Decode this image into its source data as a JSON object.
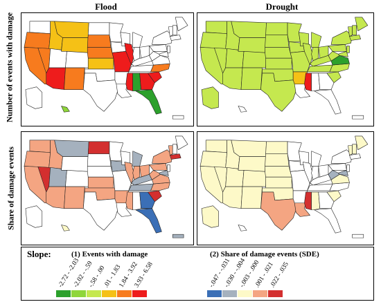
{
  "columns": {
    "left": "Flood",
    "right": "Drought"
  },
  "rows": {
    "top": "Number of events with damage",
    "bottom": "Share of damage events"
  },
  "legend": {
    "title": "Slope:",
    "events": {
      "title": "(1) Events with damage",
      "bins": [
        {
          "label": "-2.72 - -2.03",
          "color": "#2ca02c"
        },
        {
          "label": "-2.02 - -.59",
          "color": "#8fd63a"
        },
        {
          "label": "-.58 - .00",
          "color": "#c5e84f"
        },
        {
          "label": ".01 - 1.83",
          "color": "#f5c116"
        },
        {
          "label": "1.84 - 3.92",
          "color": "#f77b1e"
        },
        {
          "label": "3.93 - 6.58",
          "color": "#ee1c1c"
        }
      ]
    },
    "share": {
      "title": "(2) Share of damage events (SDE)",
      "bins": [
        {
          "label": "-.047 - -.031",
          "color": "#3b6fb6"
        },
        {
          "label": "-.030 - -.004",
          "color": "#a5b1be"
        },
        {
          "label": "-.003 - .000",
          "color": "#fdf9c8"
        },
        {
          "label": ".001 - .021",
          "color": "#f4a582"
        },
        {
          "label": ".022 - .035",
          "color": "#d32f2f"
        }
      ]
    }
  },
  "colors": {
    "ev1": "#2ca02c",
    "ev2": "#8fd63a",
    "ev3": "#c5e84f",
    "ev4": "#f5c116",
    "ev5": "#f77b1e",
    "ev6": "#ee1c1c",
    "sd1": "#3b6fb6",
    "sd2": "#a5b1be",
    "sd3": "#fdf9c8",
    "sd4": "#f4a582",
    "sd5": "#d32f2f"
  },
  "maps": [
    {
      "id": "flood-events",
      "states": {
        "CA": "ev5",
        "OR": "ev5",
        "NV": "ev5",
        "AZ": "ev6",
        "NM": "ev5",
        "ID": "ev4",
        "MT": "ev4",
        "WY": "ev4",
        "SD": "ev5",
        "NE": "ev5",
        "KS": "ev4",
        "IL": "ev6",
        "MO": "ev6",
        "MS": "ev6",
        "AL": "ev1",
        "FL": "ev1",
        "GA": "ev6",
        "SC": "ev6",
        "NC": "ev5",
        "HI": "ev2"
      }
    },
    {
      "id": "drought-events",
      "states": {
        "WA": "ev3",
        "OR": "ev3",
        "CA": "ev3",
        "NV": "ev3",
        "ID": "ev3",
        "MT": "ev3",
        "WY": "ev3",
        "UT": "ev3",
        "AZ": "ev3",
        "CO": "ev3",
        "NM": "ev3",
        "ND": "ev3",
        "SD": "ev3",
        "NE": "ev3",
        "KS": "ev3",
        "OK": "ev3",
        "TX": "ev3",
        "MN": "ev3",
        "WI": "ev3",
        "MI": "ev3",
        "IA": "ev3",
        "IL": "ev3",
        "IN": "ev3",
        "OH": "ev3",
        "MO": "ev3",
        "KY": "ev3",
        "TN": "ev3",
        "AR": "ev4",
        "MS": "ev6",
        "WV": "ev3",
        "VA": "ev1",
        "NC": "ev3",
        "SC": "ev3",
        "PA": "ev3",
        "NY": "ev3",
        "ME": "ev3",
        "VT": "ev3",
        "NH": "ev3",
        "MA": "ev3",
        "NJ": "ev3",
        "MD": "ev3",
        "AK": "ev3"
      }
    },
    {
      "id": "flood-share",
      "states": {
        "WA": "sd4",
        "OR": "sd4",
        "CA": "sd4",
        "NV": "sd5",
        "ID": "sd4",
        "MT": "sd2",
        "UT": "sd2",
        "AZ": "sd4",
        "NM": "sd4",
        "ND": "sd5",
        "IA": "sd2",
        "KS": "sd4",
        "OK": "sd4",
        "AR": "sd4",
        "IL": "sd4",
        "IN": "sd4",
        "MI": "sd2",
        "OH": "sd4",
        "PA": "sd4",
        "WV": "sd4",
        "VA": "sd4",
        "NC": "sd4",
        "SC": "sd5",
        "GA": "sd1",
        "FL": "sd1",
        "KY": "sd2",
        "TN": "sd2",
        "MS": "sd4",
        "NY": "sd4",
        "VT": "sd4",
        "MA": "sd5",
        "MD": "sd2",
        "HI": "sd3",
        "PR": "sd2"
      }
    },
    {
      "id": "drought-share",
      "states": {
        "WA": "sd3",
        "OR": "sd3",
        "CA": "sd3",
        "NV": "sd3",
        "ID": "sd3",
        "MT": "sd3",
        "WY": "sd3",
        "UT": "sd3",
        "CO": "sd3",
        "AZ": "sd3",
        "NM": "sd3",
        "ND": "sd3",
        "SD": "sd3",
        "NE": "sd3",
        "KS": "sd3",
        "OK": "sd3",
        "TX": "sd4",
        "LA": "sd4",
        "MS": "sd5",
        "AL": "sd3",
        "SC": "sd3",
        "WV": "sd2",
        "VA": "sd3",
        "MD": "sd2",
        "AK": "sd3",
        "ME": "sd3",
        "VT": "sd3",
        "NH": "sd3"
      }
    }
  ]
}
